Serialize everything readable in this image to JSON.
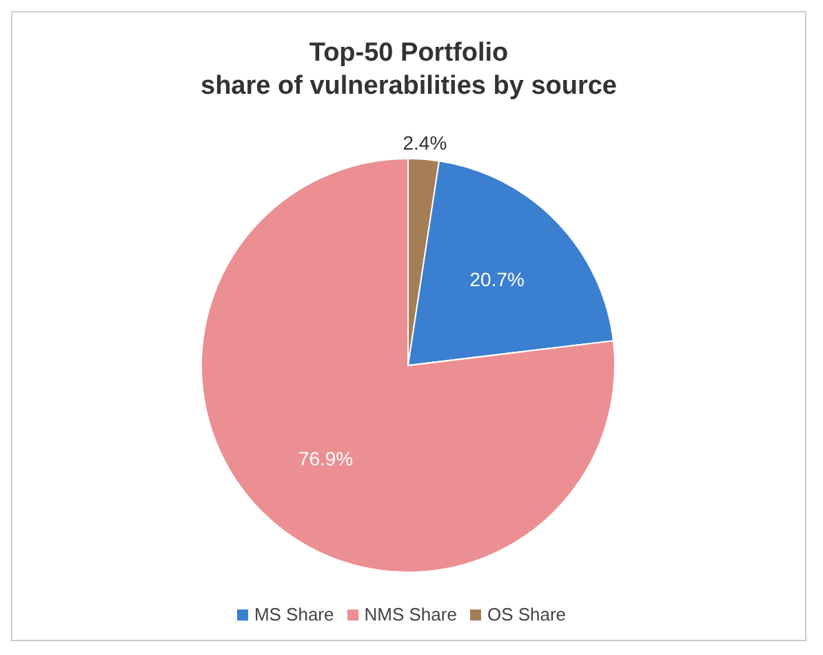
{
  "chart_data": {
    "type": "pie",
    "title": "Top-50 Portfolio",
    "subtitle": "share of vulnerabilities by source",
    "categories": [
      "OS Share",
      "MS Share",
      "NMS Share"
    ],
    "values": [
      2.4,
      20.7,
      76.9
    ],
    "colors": [
      "#a57d57",
      "#3a7fd0",
      "#ec8f93"
    ],
    "value_labels": [
      "2.4%",
      "20.7%",
      "76.9%"
    ],
    "legend": "bottom"
  }
}
